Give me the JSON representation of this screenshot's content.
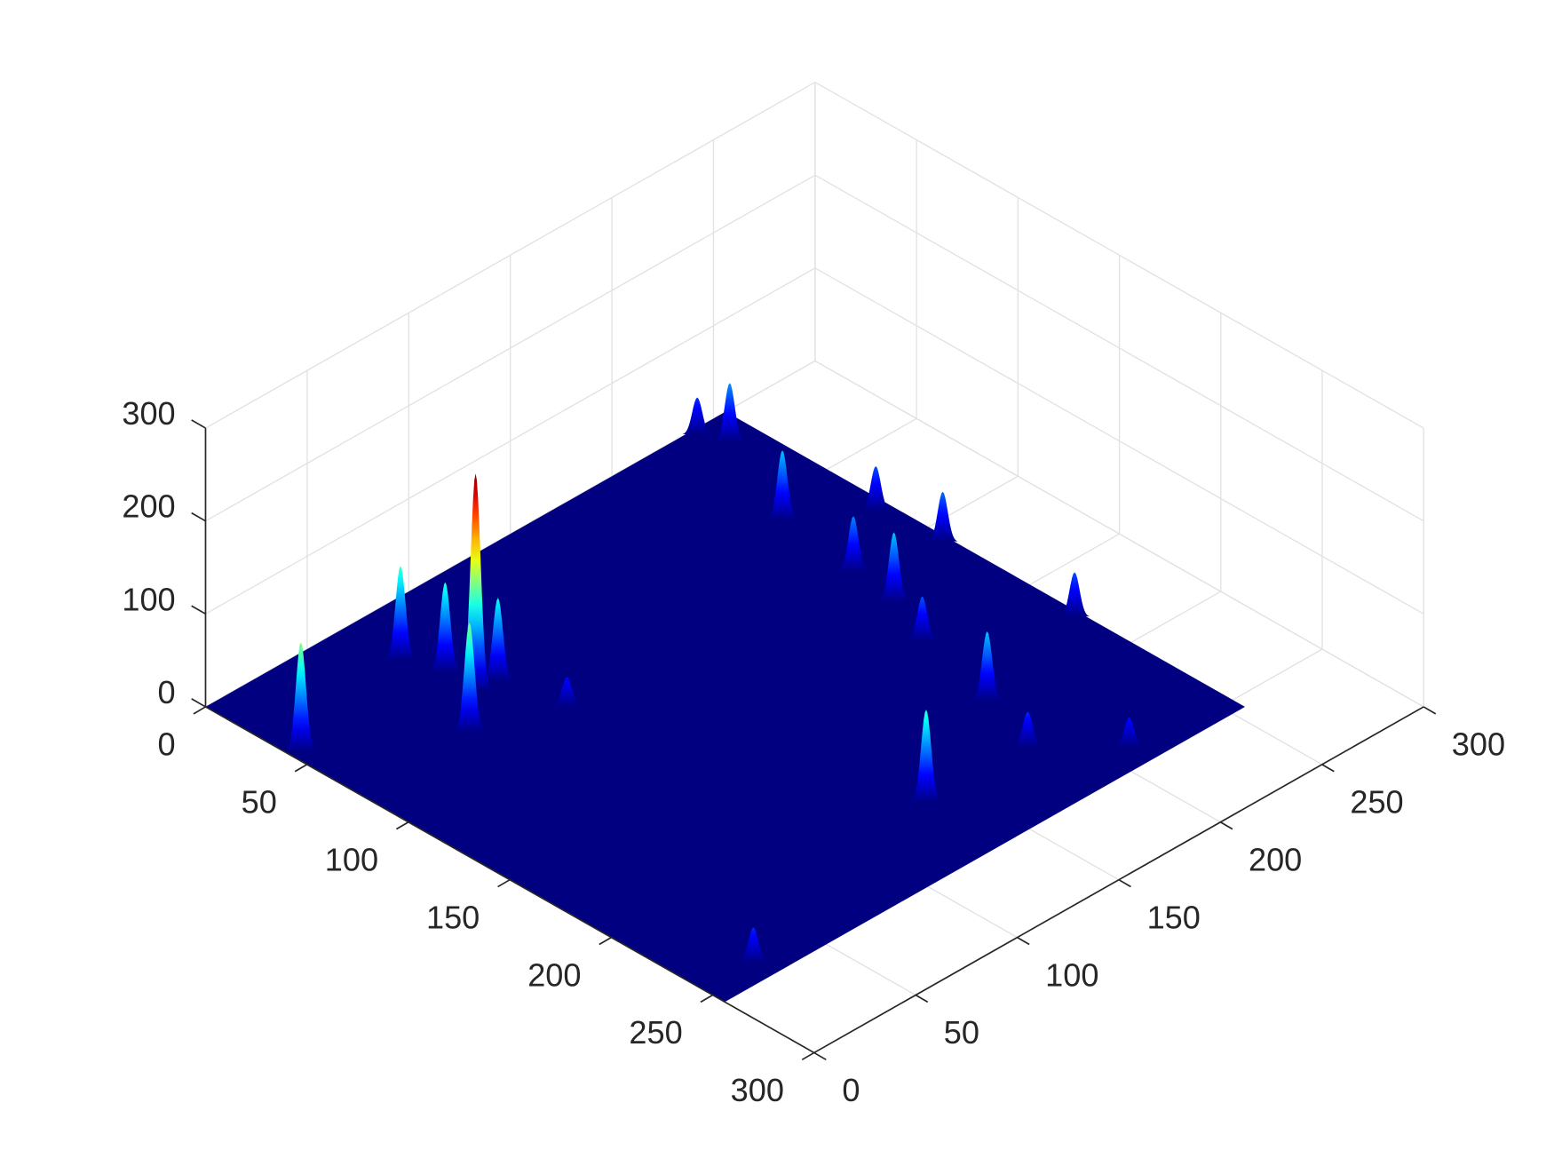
{
  "chart_data": {
    "type": "surface3d",
    "xlim": [
      0,
      300
    ],
    "xticks": [
      0,
      50,
      100,
      150,
      200,
      250,
      300
    ],
    "ylim": [
      0,
      300
    ],
    "yticks": [
      0,
      50,
      100,
      150,
      200,
      250,
      300
    ],
    "zlim": [
      0,
      300
    ],
    "zticks": [
      0,
      100,
      200,
      300
    ],
    "grid": true,
    "colormap": "jet",
    "x_extent": [
      0,
      256
    ],
    "y_extent": [
      0,
      256
    ],
    "peaks": {
      "x": [
        239,
        244,
        250,
        223,
        253,
        218,
        215,
        253,
        205,
        68,
        74,
        83,
        73,
        195,
        89,
        54,
        185,
        210,
        4,
        136,
        24
      ],
      "y": [
        3,
        14,
        80,
        61,
        110,
        101,
        124,
        175,
        148,
        28,
        44,
        61,
        60,
        190,
        89,
        76,
        220,
        245,
        43,
        219,
        246
      ],
      "z": [
        40,
        63,
        48,
        75,
        54,
        60,
        75,
        48,
        48,
        102,
        97,
        90,
        235,
        75,
        32,
        118,
        38,
        32,
        118,
        100,
        38
      ]
    }
  }
}
